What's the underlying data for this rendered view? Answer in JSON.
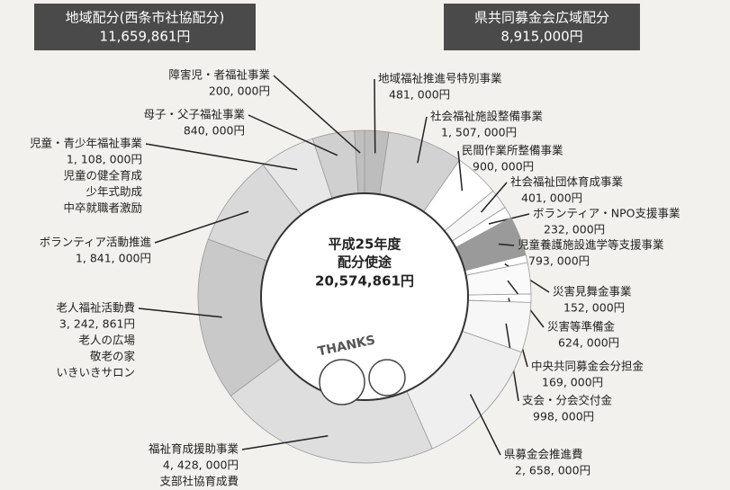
{
  "chart_data": {
    "type": "donut",
    "groups": [
      {
        "name": "地域配分(西条市社協配分)",
        "total": "11,659,861円"
      },
      {
        "name": "県共同募金会広域配分",
        "total": "8,915,000円"
      }
    ],
    "center": {
      "lines": [
        "平成25年度",
        "配分使途"
      ],
      "total": "20,574,861円"
    },
    "illustration_text": "THANKS",
    "categories": [
      "地域福祉推進号特別事業",
      "社会福祉施設整備事業",
      "民間作業所整備事業",
      "社会福祉団体育成事業",
      "ボランティア・NPO支援事業",
      "児童養護施設進学等支援事業",
      "災害見舞金事業",
      "災害等準備金",
      "中央共同募金会分担金",
      "支会・分会交付金",
      "県募金会推進費",
      "福祉育成援助事業",
      "老人福祉活動費",
      "ボランティア活動推進",
      "児童・青少年福祉事業",
      "母子・父子福祉事業",
      "障害児・者福祉事業"
    ],
    "values": [
      481000,
      1507000,
      900000,
      401000,
      232000,
      793000,
      152000,
      624000,
      169000,
      998000,
      2658000,
      4428000,
      3242861,
      1841000,
      1108000,
      840000,
      200000
    ],
    "value_labels": [
      "481, 000円",
      "1, 507, 000円",
      "900, 000円",
      "401, 000円",
      "232, 000円",
      "793, 000円",
      "152, 000円",
      "624, 000円",
      "169, 000円",
      "998, 000円",
      "2, 658, 000円",
      "4, 428, 000円",
      "3, 242, 861円",
      "1, 841, 000円",
      "1, 108, 000円",
      "840, 000円",
      "200, 000円"
    ],
    "notes": [
      [],
      [],
      [],
      [],
      [],
      [],
      [],
      [],
      [],
      [],
      [],
      [
        "支部社協育成費"
      ],
      [
        "老人の広場",
        "敬老の家",
        "いきいきサロン"
      ],
      [],
      [
        "児童の健全育成",
        "少年式助成",
        "中卒就職者激励"
      ],
      [],
      []
    ],
    "colors": [
      "#bdbdbd",
      "#d2d2d2",
      "#ffffff",
      "#f6f6f6",
      "#ffffff",
      "#9a9a9a",
      "#ffffff",
      "#fafafa",
      "#ffffff",
      "#f7f7f7",
      "#efefef",
      "#dedede",
      "#c9c9c9",
      "#d9d9d9",
      "#e7e7e7",
      "#d0d0d0",
      "#bfbfbf"
    ]
  }
}
